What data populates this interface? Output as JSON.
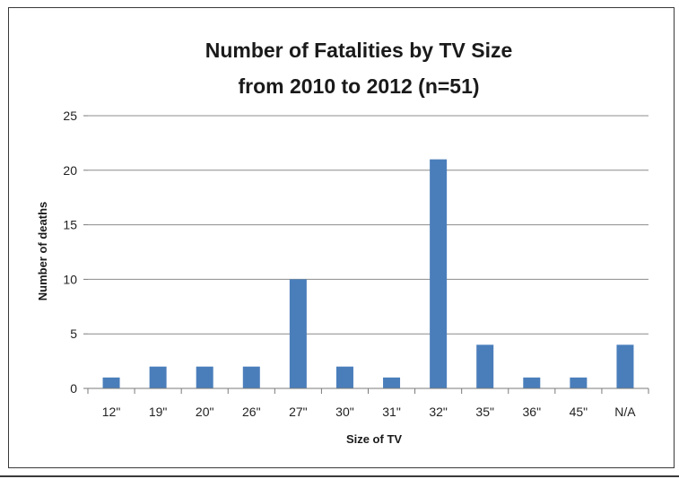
{
  "chart_data": {
    "type": "bar",
    "title_line1": "Number of Fatalities  by TV Size",
    "title_line2": "from 2010 to 2012 (n=51)",
    "xlabel": "Size of TV",
    "ylabel": "Number of deaths",
    "categories": [
      "12\"",
      "19\"",
      "20\"",
      "26\"",
      "27\"",
      "30\"",
      "31\"",
      "32\"",
      "35\"",
      "36\"",
      "45\"",
      "N/A"
    ],
    "values": [
      1,
      2,
      2,
      2,
      10,
      2,
      1,
      21,
      4,
      1,
      1,
      4
    ],
    "ylim": [
      0,
      25
    ],
    "yticks": [
      "0",
      "5",
      "10",
      "15",
      "20",
      "25"
    ],
    "grid": true,
    "legend": "none",
    "bar_color": "#4a7ebb",
    "grid_color": "#8c8c8c"
  }
}
